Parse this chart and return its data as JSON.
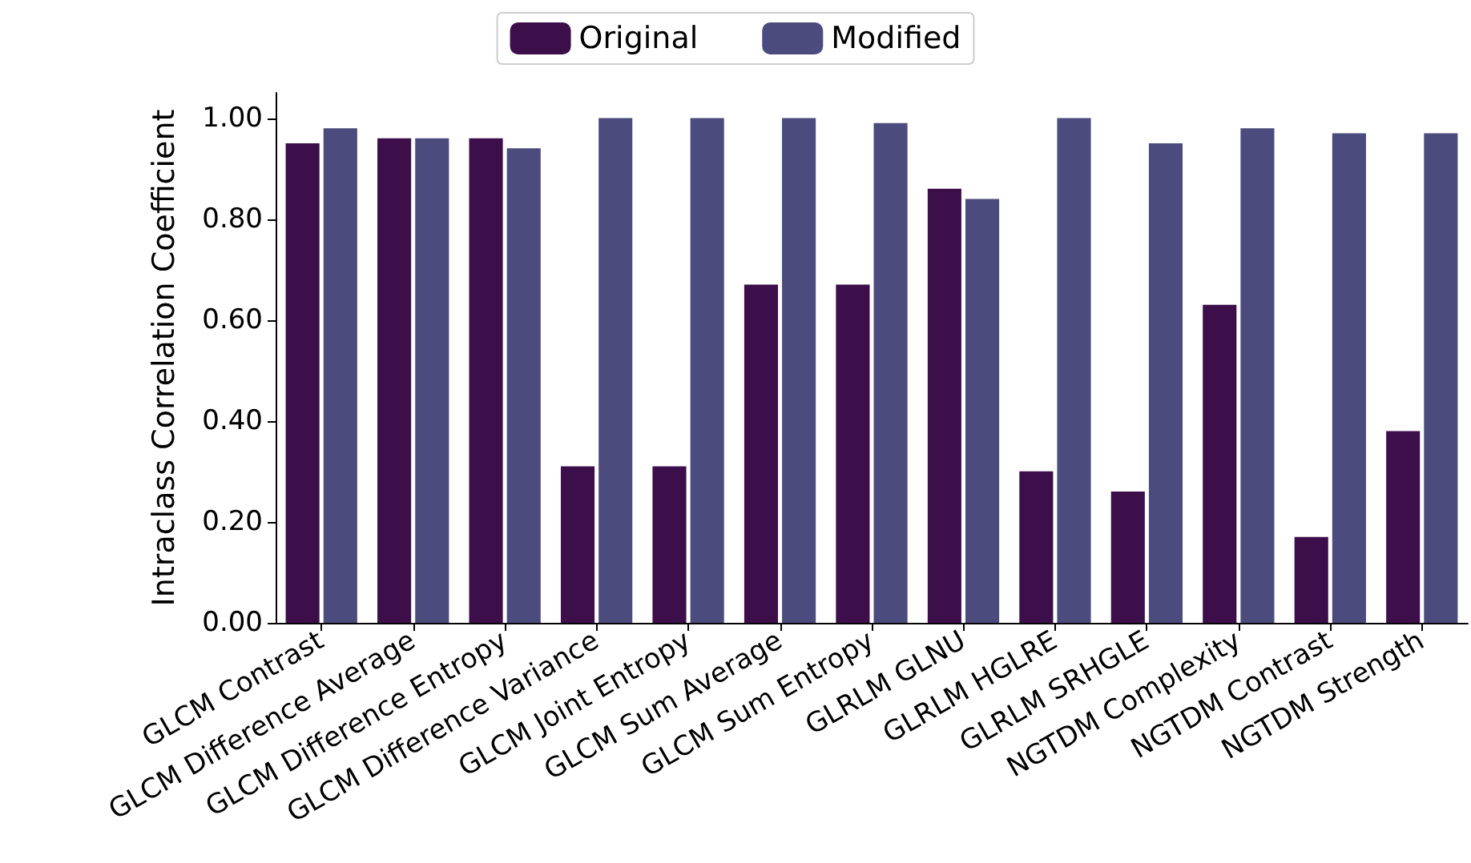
{
  "chart_data": {
    "type": "bar",
    "ylabel": "Intraclass Correlation Coefficient",
    "categories": [
      "GLCM Contrast",
      "GLCM Difference Average",
      "GLCM Difference Entropy",
      "GLCM Difference Variance",
      "GLCM Joint Entropy",
      "GLCM Sum Average",
      "GLCM Sum Entropy",
      "GLRLM GLNU",
      "GLRLM HGLRE",
      "GLRLM SRHGLE",
      "NGTDM Complexity",
      "NGTDM Contrast",
      "NGTDM Strength"
    ],
    "series": [
      {
        "name": "Original",
        "color": "#3c0e4a",
        "values": [
          0.95,
          0.96,
          0.96,
          0.31,
          0.31,
          0.67,
          0.67,
          0.86,
          0.3,
          0.26,
          0.63,
          0.17,
          0.38
        ]
      },
      {
        "name": "Modified",
        "color": "#4b4b7e",
        "values": [
          0.98,
          0.96,
          0.94,
          1.0,
          1.0,
          1.0,
          0.99,
          0.84,
          1.0,
          0.95,
          0.98,
          0.97,
          0.97
        ]
      }
    ],
    "ylim": [
      0,
      1.05
    ],
    "yticks": [
      {
        "value": 0,
        "label": "0.00"
      },
      {
        "value": 0.2,
        "label": "0.20"
      },
      {
        "value": 0.4,
        "label": "0.40"
      },
      {
        "value": 0.6,
        "label": "0.60"
      },
      {
        "value": 0.8,
        "label": "0.80"
      },
      {
        "value": 1,
        "label": "1.00"
      }
    ],
    "legend": "top",
    "grid": false
  }
}
